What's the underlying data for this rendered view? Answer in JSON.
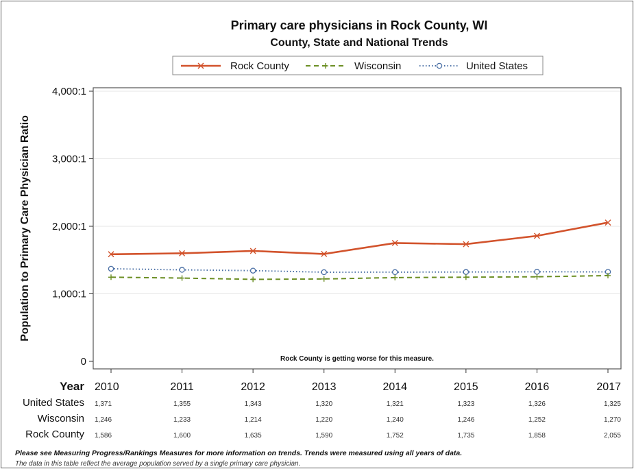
{
  "chart_data": {
    "type": "line",
    "title": "Primary care physicians in Rock County, WI",
    "subtitle": "County, State and National Trends",
    "ylabel": "Population to Primary Care Physician Ratio",
    "xlabel": "Year",
    "categories": [
      "2010",
      "2011",
      "2012",
      "2013",
      "2014",
      "2015",
      "2016",
      "2017"
    ],
    "ylim": [
      0,
      4000
    ],
    "yticks": [
      0,
      1000,
      2000,
      3000,
      4000
    ],
    "ytick_labels": [
      "0",
      "1,000:1",
      "2,000:1",
      "3,000:1",
      "4,000:1"
    ],
    "legend_position": "top-center",
    "grid": "horizontal",
    "annotation": "Rock County is getting worse for this measure.",
    "series": [
      {
        "name": "Rock County",
        "values": [
          1586,
          1600,
          1635,
          1590,
          1752,
          1735,
          1858,
          2055
        ],
        "color": "#d2532c",
        "style": "solid",
        "marker": "x"
      },
      {
        "name": "Wisconsin",
        "values": [
          1246,
          1233,
          1214,
          1220,
          1240,
          1246,
          1252,
          1270
        ],
        "color": "#6b8e23",
        "style": "dashed",
        "marker": "plus"
      },
      {
        "name": "United States",
        "values": [
          1371,
          1355,
          1343,
          1320,
          1321,
          1323,
          1326,
          1325
        ],
        "color": "#4a6fa5",
        "style": "dotted",
        "marker": "circle"
      }
    ],
    "table": {
      "header": "Year",
      "rows": [
        {
          "label": "United States",
          "cells": [
            "1,371",
            "1,355",
            "1,343",
            "1,320",
            "1,321",
            "1,323",
            "1,326",
            "1,325"
          ]
        },
        {
          "label": "Wisconsin",
          "cells": [
            "1,246",
            "1,233",
            "1,214",
            "1,220",
            "1,240",
            "1,246",
            "1,252",
            "1,270"
          ]
        },
        {
          "label": "Rock County",
          "cells": [
            "1,586",
            "1,600",
            "1,635",
            "1,590",
            "1,752",
            "1,735",
            "1,858",
            "2,055"
          ]
        }
      ]
    }
  },
  "footnotes": {
    "line1": "Please see Measuring Progress/Rankings Measures for more information on trends. Trends were measured using all years of data.",
    "line2": "The data in this table reflect the average population served by a single primary care physician."
  }
}
